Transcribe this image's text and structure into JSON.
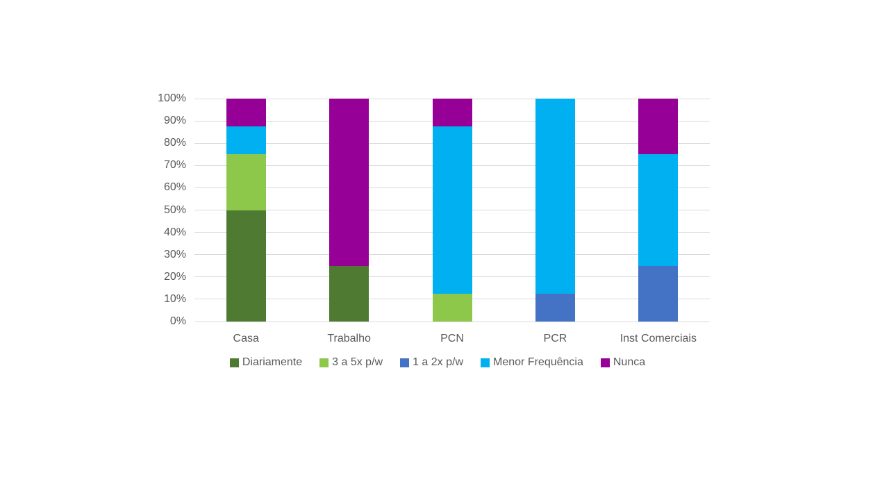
{
  "chart_data": {
    "type": "bar",
    "variant": "stacked-100-percent-column",
    "title": "",
    "xlabel": "",
    "ylabel": "",
    "categories": [
      "Casa",
      "Trabalho",
      "PCN",
      "PCR",
      "Inst Comerciais"
    ],
    "series": [
      {
        "name": "Diariamente",
        "color": "#4e7b31",
        "values": [
          50,
          25,
          0,
          0,
          0
        ]
      },
      {
        "name": "3 a 5x p/w",
        "color": "#8dc84b",
        "values": [
          25,
          0,
          12.5,
          0,
          0
        ]
      },
      {
        "name": "1 a 2x p/w",
        "color": "#4472c4",
        "values": [
          0,
          0,
          0,
          12.5,
          25
        ]
      },
      {
        "name": "Menor Frequência",
        "color": "#00b0f0",
        "values": [
          12.5,
          0,
          75,
          87.5,
          50
        ]
      },
      {
        "name": "Nunca",
        "color": "#970097",
        "values": [
          12.5,
          75,
          12.5,
          0,
          25
        ]
      }
    ],
    "ylim": [
      0,
      100
    ],
    "y_ticks": [
      "0%",
      "10%",
      "20%",
      "30%",
      "40%",
      "50%",
      "60%",
      "70%",
      "80%",
      "90%",
      "100%"
    ],
    "grid": true,
    "legend_position": "bottom"
  },
  "colors": {
    "background": "#ffffff",
    "gridline": "#d9d9d9",
    "axis_text": "#595959"
  }
}
